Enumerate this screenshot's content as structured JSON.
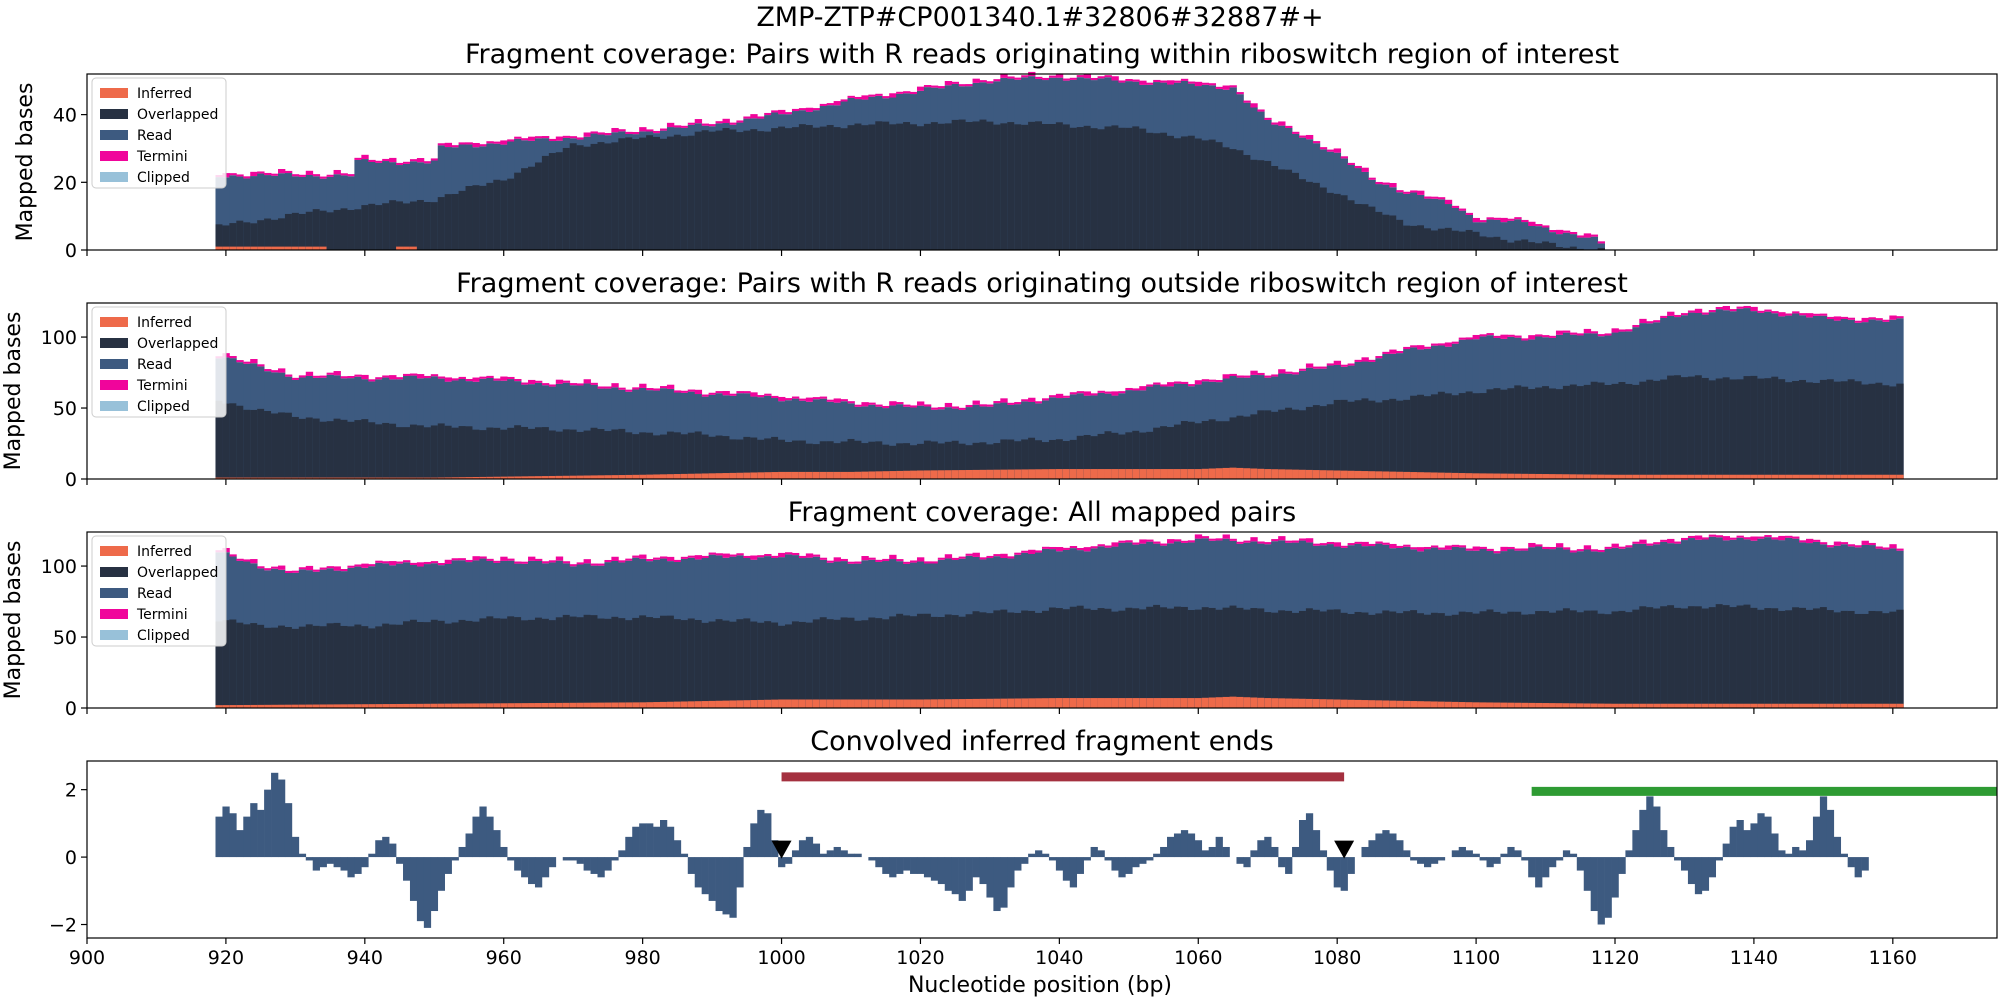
{
  "figure": {
    "title": "ZMP-ZTP#CP001340.1#32806#32887#+",
    "xlabel": "Nucleotide position (bp)"
  },
  "colors": {
    "inferred": "#ee6a4a",
    "overlapped": "#273142",
    "read": "#3d5a80",
    "termini": "#f0059b",
    "clipped": "#98c1d9",
    "bar": "#3d5a80",
    "red_bar": "#a4303f",
    "green_bar": "#2e9b33",
    "marker": "#000000"
  },
  "chart_data": [
    {
      "type": "area",
      "title": "Fragment coverage: Pairs with R reads originating within riboswitch region of interest",
      "ylabel": "Mapped bases",
      "xlim": [
        900,
        1175
      ],
      "ylim": [
        0,
        52
      ],
      "yticks": [
        0,
        20,
        40
      ],
      "xticks": [
        900,
        920,
        940,
        960,
        980,
        1000,
        1020,
        1040,
        1060,
        1080,
        1100,
        1120,
        1140,
        1160
      ],
      "legend": {
        "position": "upper-left",
        "entries": [
          "Inferred",
          "Overlapped",
          "Read",
          "Termini",
          "Clipped"
        ]
      },
      "series_profile": {
        "x_start": 919,
        "x_end": 1119,
        "total_points": [
          [
            919,
            22
          ],
          [
            938,
            22
          ],
          [
            939,
            26
          ],
          [
            950,
            26
          ],
          [
            951,
            30
          ],
          [
            955,
            31
          ],
          [
            962,
            32
          ],
          [
            975,
            34
          ],
          [
            990,
            37
          ],
          [
            1000,
            40
          ],
          [
            1010,
            44
          ],
          [
            1020,
            47
          ],
          [
            1030,
            50
          ],
          [
            1040,
            51
          ],
          [
            1048,
            50
          ],
          [
            1058,
            49
          ],
          [
            1065,
            48
          ],
          [
            1070,
            38
          ],
          [
            1075,
            34
          ],
          [
            1080,
            28
          ],
          [
            1085,
            21
          ],
          [
            1090,
            17
          ],
          [
            1097,
            13
          ],
          [
            1100,
            9
          ],
          [
            1107,
            8
          ],
          [
            1113,
            5
          ],
          [
            1117,
            3
          ],
          [
            1119,
            0
          ]
        ],
        "overlapped_points": [
          [
            919,
            7
          ],
          [
            925,
            9
          ],
          [
            932,
            11
          ],
          [
            940,
            13
          ],
          [
            950,
            15
          ],
          [
            960,
            21
          ],
          [
            970,
            31
          ],
          [
            975,
            32
          ],
          [
            980,
            33
          ],
          [
            990,
            35
          ],
          [
            1000,
            36
          ],
          [
            1010,
            37
          ],
          [
            1030,
            38
          ],
          [
            1040,
            37
          ],
          [
            1050,
            36
          ],
          [
            1060,
            33
          ],
          [
            1065,
            30
          ],
          [
            1070,
            26
          ],
          [
            1075,
            21
          ],
          [
            1080,
            17
          ],
          [
            1085,
            12
          ],
          [
            1090,
            8
          ],
          [
            1095,
            6
          ],
          [
            1100,
            5
          ],
          [
            1105,
            3
          ],
          [
            1113,
            1
          ],
          [
            1119,
            0
          ]
        ],
        "inferred_points": [
          [
            919,
            1
          ],
          [
            934,
            1
          ],
          [
            935,
            0
          ],
          [
            944,
            0
          ],
          [
            945,
            1
          ],
          [
            947,
            1
          ],
          [
            948,
            0
          ],
          [
            1119,
            0
          ]
        ]
      }
    },
    {
      "type": "area",
      "title": "Fragment coverage: Pairs with R reads originating outside riboswitch region of interest",
      "ylabel": "Mapped bases",
      "xlim": [
        900,
        1175
      ],
      "ylim": [
        0,
        124
      ],
      "yticks": [
        0,
        50,
        100
      ],
      "xticks": [
        900,
        920,
        940,
        960,
        980,
        1000,
        1020,
        1040,
        1060,
        1080,
        1100,
        1120,
        1140,
        1160
      ],
      "legend": {
        "position": "upper-left",
        "entries": [
          "Inferred",
          "Overlapped",
          "Read",
          "Termini",
          "Clipped"
        ]
      },
      "series_profile": {
        "x_start": 919,
        "x_end": 1161,
        "total_points": [
          [
            919,
            87
          ],
          [
            925,
            78
          ],
          [
            930,
            72
          ],
          [
            940,
            71
          ],
          [
            950,
            71
          ],
          [
            960,
            69
          ],
          [
            970,
            66
          ],
          [
            980,
            63
          ],
          [
            990,
            60
          ],
          [
            1000,
            57
          ],
          [
            1010,
            53
          ],
          [
            1020,
            50
          ],
          [
            1030,
            51
          ],
          [
            1036,
            55
          ],
          [
            1040,
            57
          ],
          [
            1050,
            62
          ],
          [
            1060,
            68
          ],
          [
            1070,
            73
          ],
          [
            1080,
            79
          ],
          [
            1090,
            90
          ],
          [
            1100,
            99
          ],
          [
            1110,
            100
          ],
          [
            1120,
            103
          ],
          [
            1125,
            109
          ],
          [
            1130,
            117
          ],
          [
            1140,
            119
          ],
          [
            1145,
            116
          ],
          [
            1150,
            113
          ],
          [
            1161,
            111
          ]
        ],
        "overlapped_points": [
          [
            919,
            56
          ],
          [
            925,
            48
          ],
          [
            930,
            44
          ],
          [
            940,
            40
          ],
          [
            950,
            37
          ],
          [
            960,
            36
          ],
          [
            970,
            35
          ],
          [
            980,
            33
          ],
          [
            990,
            31
          ],
          [
            1000,
            27
          ],
          [
            1010,
            26
          ],
          [
            1020,
            25
          ],
          [
            1030,
            26
          ],
          [
            1040,
            28
          ],
          [
            1050,
            33
          ],
          [
            1060,
            40
          ],
          [
            1070,
            47
          ],
          [
            1080,
            54
          ],
          [
            1090,
            57
          ],
          [
            1100,
            62
          ],
          [
            1110,
            65
          ],
          [
            1120,
            67
          ],
          [
            1130,
            72
          ],
          [
            1140,
            71
          ],
          [
            1150,
            69
          ],
          [
            1161,
            67
          ]
        ],
        "inferred_points": [
          [
            919,
            1
          ],
          [
            950,
            1
          ],
          [
            980,
            3
          ],
          [
            1000,
            5
          ],
          [
            1010,
            5
          ],
          [
            1020,
            6
          ],
          [
            1040,
            7
          ],
          [
            1060,
            7
          ],
          [
            1065,
            8
          ],
          [
            1070,
            7
          ],
          [
            1080,
            6
          ],
          [
            1090,
            5
          ],
          [
            1100,
            4
          ],
          [
            1120,
            3
          ],
          [
            1161,
            3
          ]
        ]
      }
    },
    {
      "type": "area",
      "title": "Fragment coverage: All mapped pairs",
      "ylabel": "Mapped bases",
      "xlim": [
        900,
        1175
      ],
      "ylim": [
        0,
        124
      ],
      "yticks": [
        0,
        50,
        100
      ],
      "xticks": [
        900,
        920,
        940,
        960,
        980,
        1000,
        1020,
        1040,
        1060,
        1080,
        1100,
        1120,
        1140,
        1160
      ],
      "legend": {
        "position": "upper-left",
        "entries": [
          "Inferred",
          "Overlapped",
          "Read",
          "Termini",
          "Clipped"
        ]
      },
      "series_profile": {
        "x_start": 919,
        "x_end": 1161,
        "total_points": [
          [
            919,
            109
          ],
          [
            925,
            100
          ],
          [
            930,
            95
          ],
          [
            940,
            100
          ],
          [
            950,
            102
          ],
          [
            960,
            104
          ],
          [
            970,
            101
          ],
          [
            980,
            104
          ],
          [
            990,
            106
          ],
          [
            1000,
            107
          ],
          [
            1010,
            103
          ],
          [
            1020,
            103
          ],
          [
            1030,
            106
          ],
          [
            1040,
            111
          ],
          [
            1050,
            115
          ],
          [
            1060,
            118
          ],
          [
            1070,
            117
          ],
          [
            1080,
            115
          ],
          [
            1090,
            113
          ],
          [
            1100,
            111
          ],
          [
            1110,
            112
          ],
          [
            1120,
            111
          ],
          [
            1125,
            116
          ],
          [
            1130,
            118
          ],
          [
            1140,
            120
          ],
          [
            1150,
            116
          ],
          [
            1161,
            111
          ]
        ],
        "overlapped_points": [
          [
            919,
            63
          ],
          [
            925,
            57
          ],
          [
            930,
            58
          ],
          [
            940,
            58
          ],
          [
            950,
            61
          ],
          [
            960,
            63
          ],
          [
            970,
            64
          ],
          [
            980,
            64
          ],
          [
            990,
            62
          ],
          [
            1000,
            60
          ],
          [
            1010,
            63
          ],
          [
            1020,
            65
          ],
          [
            1030,
            67
          ],
          [
            1040,
            70
          ],
          [
            1050,
            70
          ],
          [
            1060,
            71
          ],
          [
            1070,
            69
          ],
          [
            1080,
            68
          ],
          [
            1090,
            67
          ],
          [
            1100,
            67
          ],
          [
            1110,
            68
          ],
          [
            1120,
            68
          ],
          [
            1130,
            72
          ],
          [
            1140,
            71
          ],
          [
            1150,
            69
          ],
          [
            1161,
            67
          ]
        ],
        "inferred_points": [
          [
            919,
            2
          ],
          [
            950,
            3
          ],
          [
            980,
            4
          ],
          [
            1000,
            6
          ],
          [
            1020,
            6
          ],
          [
            1040,
            7
          ],
          [
            1060,
            7
          ],
          [
            1065,
            8
          ],
          [
            1070,
            7
          ],
          [
            1080,
            6
          ],
          [
            1090,
            5
          ],
          [
            1100,
            4
          ],
          [
            1120,
            3
          ],
          [
            1161,
            3
          ]
        ]
      }
    },
    {
      "type": "bar",
      "title": "Convolved inferred fragment ends",
      "xlabel": "Nucleotide position (bp)",
      "xlim": [
        900,
        1175
      ],
      "ylim": [
        -2.4,
        2.85
      ],
      "yticks": [
        -2,
        0,
        2
      ],
      "xticks": [
        900,
        920,
        940,
        960,
        980,
        1000,
        1020,
        1040,
        1060,
        1080,
        1100,
        1120,
        1140,
        1160
      ],
      "x_start": 919,
      "values": [
        1.2,
        1.5,
        1.3,
        0.8,
        1.2,
        1.6,
        1.4,
        2.0,
        2.5,
        2.3,
        1.6,
        0.6,
        0.1,
        -0.1,
        -0.4,
        -0.3,
        -0.2,
        -0.3,
        -0.4,
        -0.6,
        -0.5,
        -0.3,
        0.1,
        0.5,
        0.6,
        0.4,
        -0.2,
        -0.7,
        -1.3,
        -1.9,
        -2.1,
        -1.6,
        -1.0,
        -0.5,
        -0.1,
        0.3,
        0.7,
        1.2,
        1.5,
        1.2,
        0.8,
        0.3,
        -0.1,
        -0.4,
        -0.6,
        -0.8,
        -0.9,
        -0.6,
        -0.3,
        0.0,
        -0.1,
        -0.1,
        -0.2,
        -0.4,
        -0.5,
        -0.6,
        -0.4,
        -0.1,
        0.2,
        0.6,
        0.9,
        1.0,
        1.0,
        0.9,
        1.1,
        0.9,
        0.5,
        0.1,
        -0.5,
        -0.9,
        -1.1,
        -1.3,
        -1.6,
        -1.7,
        -1.8,
        -0.9,
        0.3,
        1.0,
        1.4,
        1.3,
        0.5,
        -0.3,
        -0.2,
        0.2,
        0.5,
        0.6,
        0.4,
        0.1,
        0.2,
        0.3,
        0.2,
        0.1,
        0.1,
        0.0,
        -0.1,
        -0.3,
        -0.5,
        -0.6,
        -0.5,
        -0.4,
        -0.5,
        -0.5,
        -0.6,
        -0.7,
        -0.8,
        -1.0,
        -1.1,
        -1.3,
        -1.0,
        -0.6,
        -0.8,
        -1.2,
        -1.6,
        -1.5,
        -0.9,
        -0.4,
        -0.2,
        0.1,
        0.2,
        0.1,
        -0.1,
        -0.4,
        -0.7,
        -0.9,
        -0.5,
        -0.1,
        0.3,
        0.2,
        -0.1,
        -0.4,
        -0.6,
        -0.5,
        -0.3,
        -0.2,
        -0.1,
        0.1,
        0.3,
        0.6,
        0.7,
        0.8,
        0.7,
        0.5,
        0.2,
        0.3,
        0.6,
        0.3,
        0.0,
        -0.2,
        -0.3,
        0.2,
        0.5,
        0.6,
        0.3,
        -0.3,
        -0.5,
        0.3,
        1.1,
        1.3,
        0.8,
        0.2,
        -0.4,
        -0.9,
        -1.0,
        -0.5,
        0.0,
        0.3,
        0.5,
        0.7,
        0.8,
        0.7,
        0.5,
        0.2,
        -0.1,
        -0.2,
        -0.3,
        -0.2,
        -0.1,
        0.0,
        0.2,
        0.3,
        0.2,
        0.1,
        -0.1,
        -0.3,
        -0.2,
        0.1,
        0.3,
        0.2,
        -0.1,
        -0.6,
        -0.9,
        -0.6,
        -0.3,
        -0.1,
        0.2,
        0.1,
        -0.4,
        -1.0,
        -1.6,
        -2.0,
        -1.8,
        -1.2,
        -0.5,
        0.2,
        0.8,
        1.4,
        1.8,
        1.5,
        0.8,
        0.3,
        -0.1,
        -0.4,
        -0.8,
        -1.1,
        -1.0,
        -0.6,
        -0.1,
        0.4,
        0.9,
        1.1,
        0.8,
        1.0,
        1.3,
        1.2,
        0.7,
        0.2,
        0.1,
        0.3,
        0.2,
        0.5,
        1.2,
        1.8,
        1.4,
        0.6,
        0.1,
        -0.3,
        -0.6,
        -0.4
      ],
      "annotations": {
        "red_bar": {
          "x0": 1000,
          "x1": 1081,
          "y": 2.38
        },
        "green_bar": {
          "x0": 1108,
          "x1": 1175,
          "y": 1.95
        },
        "markers": [
          {
            "x": 1000,
            "y": 0.22
          },
          {
            "x": 1081,
            "y": 0.22
          }
        ]
      }
    }
  ]
}
